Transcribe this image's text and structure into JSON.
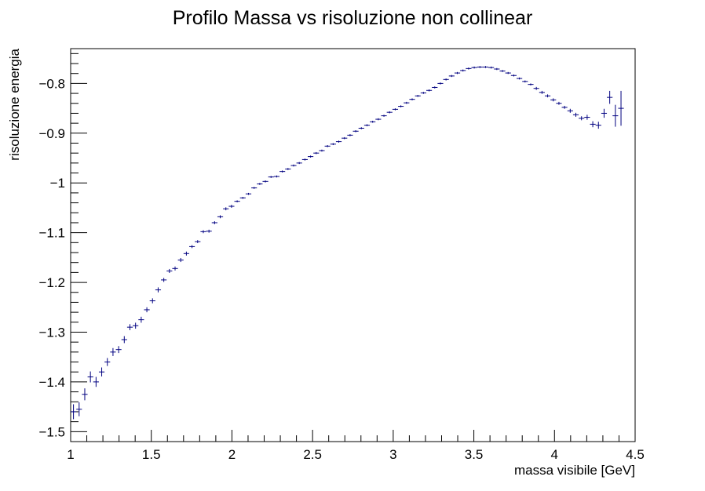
{
  "chart_data": {
    "type": "scatter",
    "title": "Profilo Massa vs risoluzione non collinear",
    "xlabel": "massa visibile [GeV]",
    "ylabel": "risoluzione energia",
    "xlim": [
      1.0,
      4.5
    ],
    "ylim": [
      -1.52,
      -0.73
    ],
    "x_ticks": [
      1,
      1.5,
      2,
      2.5,
      3,
      3.5,
      4,
      4.5
    ],
    "x_tick_labels": [
      "1",
      "1.5",
      "2",
      "2.5",
      "3",
      "3.5",
      "4",
      "4.5"
    ],
    "y_ticks": [
      -1.5,
      -1.4,
      -1.3,
      -1.2,
      -1.1,
      -1.0,
      -0.9,
      -0.8
    ],
    "y_tick_labels": [
      "−1.5",
      "−1.4",
      "−1.3",
      "−1.2",
      "−1.1",
      "−1",
      "−0.9",
      "−0.8"
    ],
    "grid": false,
    "legend": "none",
    "marker_color": "#000080",
    "series": [
      {
        "x_bin_width": 0.035,
        "points": [
          [
            1.0175,
            -1.46,
            0.015
          ],
          [
            1.0525,
            -1.455,
            0.014
          ],
          [
            1.0875,
            -1.425,
            0.012
          ],
          [
            1.1225,
            -1.39,
            0.011
          ],
          [
            1.1575,
            -1.4,
            0.01
          ],
          [
            1.1925,
            -1.38,
            0.009
          ],
          [
            1.2275,
            -1.36,
            0.008
          ],
          [
            1.2625,
            -1.34,
            0.008
          ],
          [
            1.2975,
            -1.335,
            0.007
          ],
          [
            1.3325,
            -1.315,
            0.007
          ],
          [
            1.3675,
            -1.29,
            0.006
          ],
          [
            1.4025,
            -1.287,
            0.006
          ],
          [
            1.4375,
            -1.275,
            0.006
          ],
          [
            1.4725,
            -1.255,
            0.005
          ],
          [
            1.5075,
            -1.237,
            0.005
          ],
          [
            1.5425,
            -1.215,
            0.005
          ],
          [
            1.5775,
            -1.195,
            0.004
          ],
          [
            1.6125,
            -1.177,
            0.004
          ],
          [
            1.6475,
            -1.172,
            0.004
          ],
          [
            1.6825,
            -1.155,
            0.004
          ],
          [
            1.7175,
            -1.142,
            0.004
          ],
          [
            1.7525,
            -1.128,
            0.003
          ],
          [
            1.7875,
            -1.118,
            0.003
          ],
          [
            1.8225,
            -1.098,
            0.003
          ],
          [
            1.8575,
            -1.097,
            0.003
          ],
          [
            1.8925,
            -1.08,
            0.003
          ],
          [
            1.9275,
            -1.068,
            0.003
          ],
          [
            1.9625,
            -1.052,
            0.003
          ],
          [
            1.9975,
            -1.047,
            0.003
          ],
          [
            2.0325,
            -1.037,
            0.002
          ],
          [
            2.0675,
            -1.03,
            0.002
          ],
          [
            2.1025,
            -1.022,
            0.002
          ],
          [
            2.1375,
            -1.01,
            0.002
          ],
          [
            2.1725,
            -1.002,
            0.002
          ],
          [
            2.2075,
            -0.997,
            0.002
          ],
          [
            2.2425,
            -0.988,
            0.002
          ],
          [
            2.2775,
            -0.987,
            0.002
          ],
          [
            2.3125,
            -0.977,
            0.002
          ],
          [
            2.3475,
            -0.972,
            0.002
          ],
          [
            2.3825,
            -0.965,
            0.002
          ],
          [
            2.4175,
            -0.96,
            0.002
          ],
          [
            2.4525,
            -0.953,
            0.002
          ],
          [
            2.4875,
            -0.947,
            0.002
          ],
          [
            2.5225,
            -0.94,
            0.002
          ],
          [
            2.5575,
            -0.935,
            0.002
          ],
          [
            2.5925,
            -0.926,
            0.002
          ],
          [
            2.6275,
            -0.922,
            0.002
          ],
          [
            2.6625,
            -0.917,
            0.002
          ],
          [
            2.6975,
            -0.91,
            0.002
          ],
          [
            2.7325,
            -0.904,
            0.002
          ],
          [
            2.7675,
            -0.896,
            0.002
          ],
          [
            2.8025,
            -0.89,
            0.002
          ],
          [
            2.8375,
            -0.884,
            0.002
          ],
          [
            2.8725,
            -0.877,
            0.002
          ],
          [
            2.9075,
            -0.872,
            0.002
          ],
          [
            2.9425,
            -0.865,
            0.002
          ],
          [
            2.9775,
            -0.858,
            0.002
          ],
          [
            3.0125,
            -0.852,
            0.002
          ],
          [
            3.0475,
            -0.846,
            0.002
          ],
          [
            3.0825,
            -0.839,
            0.002
          ],
          [
            3.1175,
            -0.832,
            0.002
          ],
          [
            3.1525,
            -0.825,
            0.002
          ],
          [
            3.1875,
            -0.819,
            0.002
          ],
          [
            3.2225,
            -0.814,
            0.002
          ],
          [
            3.2575,
            -0.808,
            0.002
          ],
          [
            3.2925,
            -0.8,
            0.002
          ],
          [
            3.3275,
            -0.792,
            0.002
          ],
          [
            3.3625,
            -0.785,
            0.002
          ],
          [
            3.3975,
            -0.779,
            0.002
          ],
          [
            3.4325,
            -0.774,
            0.002
          ],
          [
            3.4675,
            -0.77,
            0.002
          ],
          [
            3.5025,
            -0.768,
            0.002
          ],
          [
            3.5375,
            -0.767,
            0.002
          ],
          [
            3.5725,
            -0.767,
            0.002
          ],
          [
            3.6075,
            -0.768,
            0.002
          ],
          [
            3.6425,
            -0.771,
            0.002
          ],
          [
            3.6775,
            -0.775,
            0.002
          ],
          [
            3.7125,
            -0.779,
            0.002
          ],
          [
            3.7475,
            -0.784,
            0.002
          ],
          [
            3.7825,
            -0.79,
            0.002
          ],
          [
            3.8175,
            -0.796,
            0.002
          ],
          [
            3.8525,
            -0.802,
            0.002
          ],
          [
            3.8875,
            -0.81,
            0.003
          ],
          [
            3.9225,
            -0.818,
            0.003
          ],
          [
            3.9575,
            -0.825,
            0.003
          ],
          [
            3.9925,
            -0.833,
            0.003
          ],
          [
            4.0275,
            -0.84,
            0.003
          ],
          [
            4.0625,
            -0.848,
            0.003
          ],
          [
            4.0975,
            -0.855,
            0.004
          ],
          [
            4.1325,
            -0.863,
            0.004
          ],
          [
            4.1675,
            -0.87,
            0.004
          ],
          [
            4.2025,
            -0.868,
            0.005
          ],
          [
            4.2375,
            -0.882,
            0.006
          ],
          [
            4.2725,
            -0.884,
            0.007
          ],
          [
            4.3075,
            -0.86,
            0.009
          ],
          [
            4.3425,
            -0.828,
            0.013
          ],
          [
            4.3775,
            -0.865,
            0.022
          ],
          [
            4.4125,
            -0.85,
            0.035
          ]
        ]
      }
    ]
  }
}
